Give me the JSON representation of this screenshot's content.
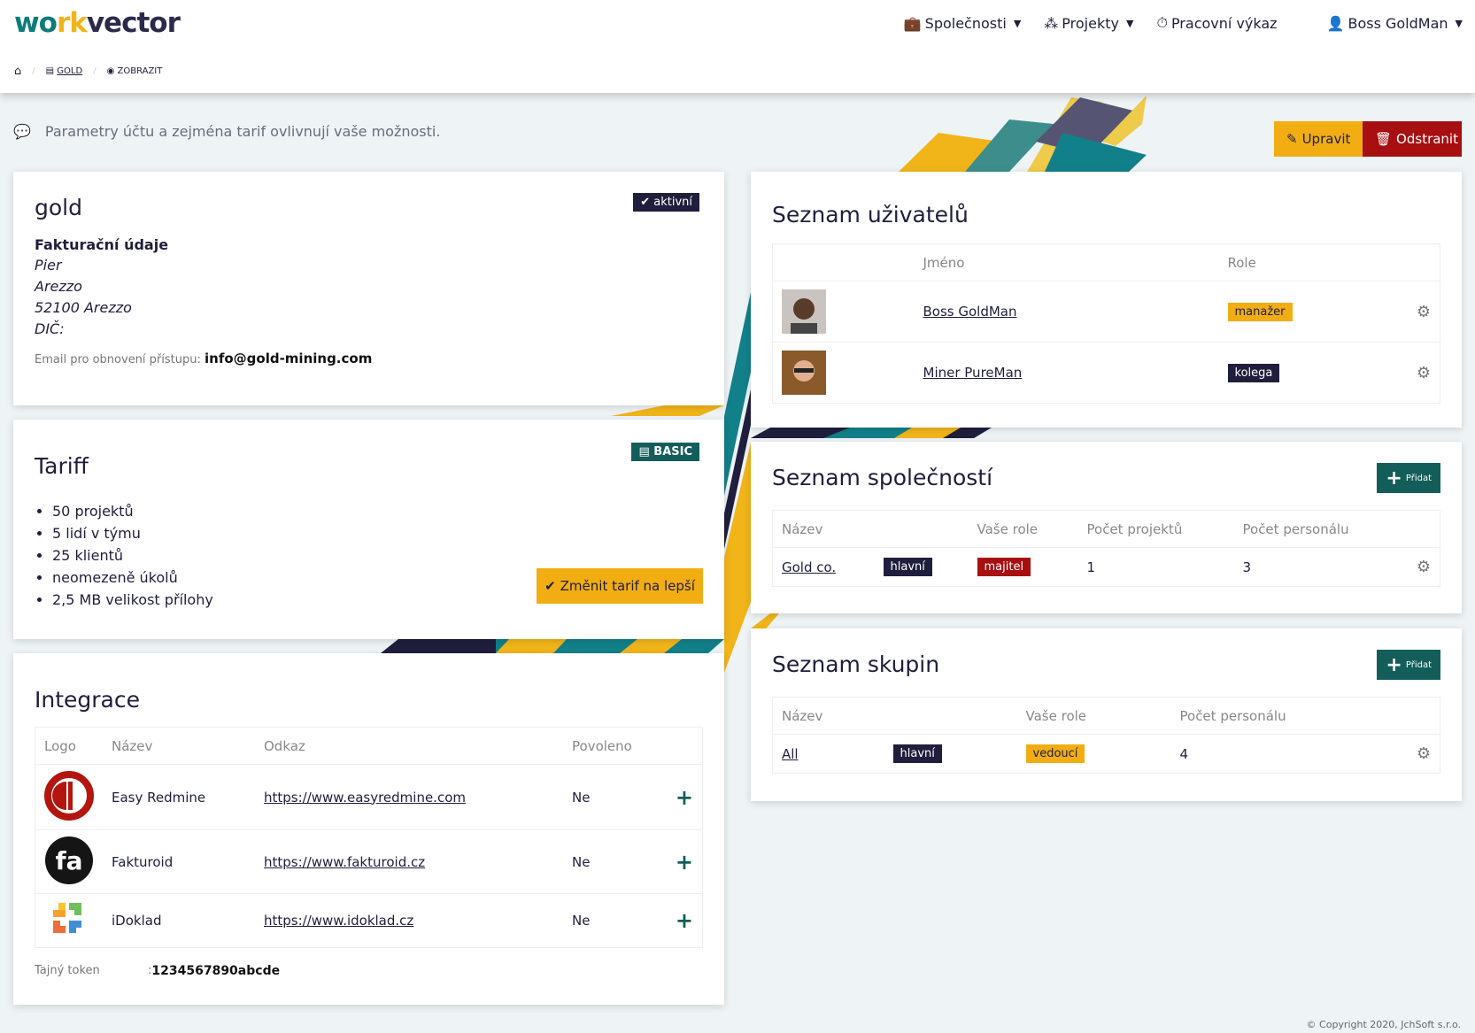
{
  "header": {
    "logo": {
      "part1": "wo",
      "part2": "rk",
      "part3": "vect",
      "part4": "or"
    },
    "nav": [
      {
        "label": "Společnosti",
        "icon": "briefcase-icon",
        "dropdown": true
      },
      {
        "label": "Projekty",
        "icon": "cubes-icon",
        "dropdown": true
      },
      {
        "label": "Pracovní výkaz",
        "icon": "stopwatch-icon",
        "dropdown": false
      },
      {
        "label": "Boss GoldMan",
        "icon": "user-icon",
        "dropdown": true
      }
    ]
  },
  "breadcrumb": [
    {
      "label": "",
      "icon": "home-icon"
    },
    {
      "label": "GOLD",
      "icon": "file-icon"
    },
    {
      "label": "ZOBRAZIT",
      "icon": "eye-icon"
    }
  ],
  "info": "Parametry účtu a zejména tarif ovlivnují vaše možnosti.",
  "actions": {
    "edit": "Upravit",
    "delete": "Odstranit"
  },
  "account": {
    "title": "gold",
    "status": "aktivní",
    "billing_heading": "Fakturační údaje",
    "address": [
      "Pier",
      "Arezzo",
      "52100 Arezzo",
      "DIČ:"
    ],
    "email_label": "Email pro obnovení přístupu:",
    "email": "info@gold-mining.com"
  },
  "tariff": {
    "title": "Tariff",
    "plan": "BASIC",
    "features": [
      "50 projektů",
      "5 lidí v týmu",
      "25 klientů",
      "neomezeně úkolů",
      "2,5 MB velikost přílohy"
    ],
    "upgrade": "Změnit tarif na lepší"
  },
  "integrations": {
    "title": "Integrace",
    "columns": [
      "Logo",
      "Název",
      "Odkaz",
      "Povoleno"
    ],
    "rows": [
      {
        "name": "Easy Redmine",
        "url": "https://www.easyredmine.com",
        "enabled": "Ne"
      },
      {
        "name": "Fakturoid",
        "url": "https://www.fakturoid.cz",
        "enabled": "Ne"
      },
      {
        "name": "iDoklad",
        "url": "https://www.idoklad.cz",
        "enabled": "Ne"
      }
    ],
    "token_label": "Tajný token",
    "token_sep": ":",
    "token": "1234567890abcde"
  },
  "users": {
    "title": "Seznam uživatelů",
    "columns": [
      "",
      "Jméno",
      "Role"
    ],
    "rows": [
      {
        "name": "Boss GoldMan",
        "role": "manažer"
      },
      {
        "name": "Miner PureMan",
        "role": "kolega"
      }
    ]
  },
  "companies": {
    "title": "Seznam společností",
    "add": "Přidat",
    "columns": [
      "Název",
      "",
      "Vaše role",
      "Počet projektů",
      "Počet personálu"
    ],
    "rows": [
      {
        "name": "Gold co.",
        "tag": "hlavní",
        "role": "majitel",
        "projects": "1",
        "staff": "3"
      }
    ]
  },
  "groups": {
    "title": "Seznam skupin",
    "add": "Přidat",
    "columns": [
      "Název",
      "",
      "Vaše role",
      "Počet personálu"
    ],
    "rows": [
      {
        "name": "All",
        "tag": "hlavní",
        "role": "vedoucí",
        "staff": "4"
      }
    ]
  },
  "footer": "© Copyright 2020, JchSoft s.r.o.",
  "colors": {
    "navy": "#1f1e3d",
    "gold": "#f1ad12",
    "red": "#a70f10",
    "teal": "#135e5a",
    "logo_teal": "#0f7b7b"
  }
}
